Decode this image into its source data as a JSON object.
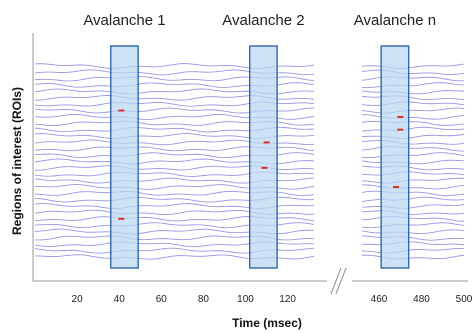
{
  "chart_data": {
    "type": "line",
    "xlabel": "Time (msec)",
    "ylabel": "Regions of interest (ROIs)",
    "x_segments": [
      {
        "xlim": [
          0,
          133
        ],
        "ticks": [
          20,
          40,
          60,
          80,
          100,
          120
        ]
      },
      {
        "xlim": [
          452,
          500
        ],
        "ticks": [
          460,
          480,
          500
        ]
      }
    ],
    "axis_break": true,
    "roi_trace_count": 31,
    "trace_color": "#9a94e6",
    "avalanches": [
      {
        "label": "Avalanche 1",
        "x_start": 36,
        "x_end": 49,
        "events": [
          {
            "x": 41,
            "roi": 24
          },
          {
            "x": 41,
            "roi": 7
          }
        ]
      },
      {
        "label": "Avalanche 2",
        "x_start": 102,
        "x_end": 115,
        "events": [
          {
            "x": 110,
            "roi": 19
          },
          {
            "x": 109,
            "roi": 15
          }
        ]
      },
      {
        "label": "Avalanche n",
        "x_start": 461,
        "x_end": 474,
        "events": [
          {
            "x": 470,
            "roi": 23
          },
          {
            "x": 470,
            "roi": 21
          },
          {
            "x": 468,
            "roi": 12
          }
        ]
      }
    ],
    "box_fill": "#bcd8f2",
    "box_stroke": "#1f5fa8",
    "event_color": "#d9302c"
  }
}
